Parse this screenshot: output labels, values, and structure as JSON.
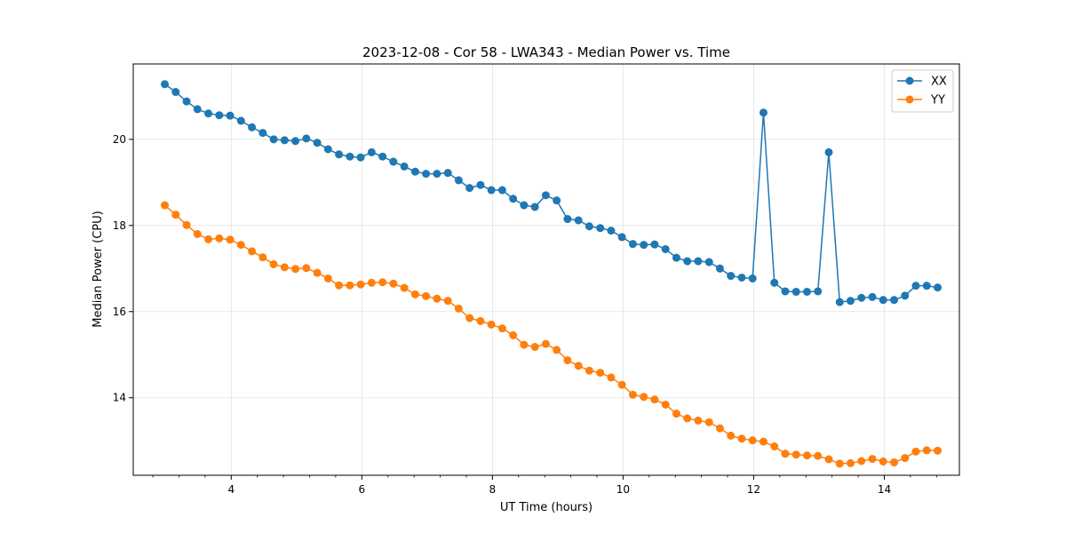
{
  "chart_data": {
    "type": "line",
    "title": "2023-12-08 - Cor 58 - LWA343 - Median Power vs. Time",
    "xlabel": "UT Time (hours)",
    "ylabel": "Median Power (CPU)",
    "xlim": [
      2.5,
      15.15
    ],
    "ylim": [
      12.2,
      21.75
    ],
    "xticks": [
      4,
      6,
      8,
      10,
      12,
      14
    ],
    "yticks": [
      14,
      16,
      18,
      20
    ],
    "grid": true,
    "legend_position": "upper right",
    "x": [
      2.983,
      3.15,
      3.317,
      3.483,
      3.65,
      3.817,
      3.983,
      4.15,
      4.317,
      4.483,
      4.65,
      4.817,
      4.983,
      5.15,
      5.317,
      5.483,
      5.65,
      5.817,
      5.983,
      6.15,
      6.317,
      6.483,
      6.65,
      6.817,
      6.983,
      7.15,
      7.317,
      7.483,
      7.65,
      7.817,
      7.983,
      8.15,
      8.317,
      8.483,
      8.65,
      8.817,
      8.983,
      9.15,
      9.317,
      9.483,
      9.65,
      9.817,
      9.983,
      10.15,
      10.317,
      10.483,
      10.65,
      10.817,
      10.983,
      11.15,
      11.317,
      11.483,
      11.65,
      11.817,
      11.983,
      12.15,
      12.317,
      12.483,
      12.65,
      12.817,
      12.983,
      13.15,
      13.317,
      13.483,
      13.65,
      13.817,
      13.983,
      14.15,
      14.317,
      14.483,
      14.65,
      14.817
    ],
    "series": [
      {
        "name": "XX",
        "color": "#1f77b4",
        "values": [
          21.28,
          21.1,
          20.88,
          20.7,
          20.6,
          20.56,
          20.55,
          20.43,
          20.28,
          20.15,
          20.0,
          19.98,
          19.96,
          20.02,
          19.92,
          19.77,
          19.65,
          19.6,
          19.58,
          19.7,
          19.6,
          19.48,
          19.37,
          19.25,
          19.2,
          19.2,
          19.22,
          19.05,
          18.87,
          18.94,
          18.82,
          18.82,
          18.62,
          18.47,
          18.43,
          18.7,
          18.58,
          18.15,
          18.12,
          17.98,
          17.94,
          17.88,
          17.73,
          17.57,
          17.55,
          17.56,
          17.45,
          17.25,
          17.17,
          17.17,
          17.15,
          17.0,
          16.83,
          16.79,
          16.77,
          20.62,
          16.67,
          16.47,
          16.46,
          16.46,
          16.47,
          19.7,
          16.22,
          16.25,
          16.32,
          16.34,
          16.27,
          16.27,
          16.37,
          16.6,
          16.6,
          16.56
        ]
      },
      {
        "name": "YY",
        "color": "#ff7f0e",
        "values": [
          18.47,
          18.25,
          18.01,
          17.8,
          17.68,
          17.7,
          17.67,
          17.55,
          17.4,
          17.26,
          17.1,
          17.03,
          16.99,
          17.01,
          16.9,
          16.77,
          16.61,
          16.61,
          16.63,
          16.67,
          16.68,
          16.65,
          16.55,
          16.4,
          16.36,
          16.3,
          16.25,
          16.07,
          15.85,
          15.78,
          15.7,
          15.61,
          15.45,
          15.23,
          15.18,
          15.25,
          15.11,
          14.87,
          14.74,
          14.63,
          14.58,
          14.47,
          14.3,
          14.07,
          14.02,
          13.96,
          13.84,
          13.63,
          13.52,
          13.47,
          13.43,
          13.29,
          13.12,
          13.05,
          13.01,
          12.98,
          12.87,
          12.7,
          12.68,
          12.66,
          12.65,
          12.57,
          12.47,
          12.48,
          12.53,
          12.58,
          12.52,
          12.5,
          12.6,
          12.75,
          12.78,
          12.77
        ]
      }
    ]
  }
}
